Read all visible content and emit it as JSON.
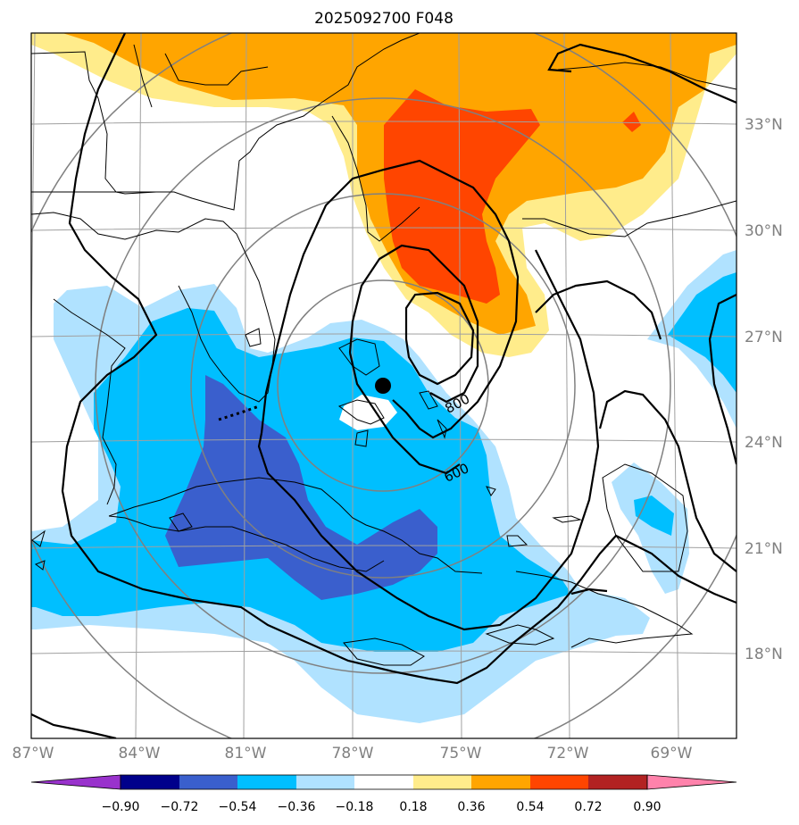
{
  "title": "2025092700 F048",
  "lat_labels": [
    "33°N",
    "30°N",
    "27°N",
    "24°N",
    "21°N",
    "18°N"
  ],
  "lon_labels": [
    "87°W",
    "84°W",
    "81°W",
    "78°W",
    "75°W",
    "72°W",
    "69°W"
  ],
  "contour_labels": [
    "800",
    "600"
  ],
  "colorbar": {
    "labels": [
      "−0.90",
      "−0.72",
      "−0.54",
      "−0.36",
      "−0.18",
      "0.18",
      "0.36",
      "0.54",
      "0.72",
      "0.90"
    ],
    "colors": [
      "#9932cc",
      "#00008b",
      "#3a5fcd",
      "#00bfff",
      "#b0e2ff",
      "#ffffff",
      "#ffec8b",
      "#ffa500",
      "#ff4500",
      "#b22222",
      "#ff82ab"
    ]
  },
  "colors": {
    "c_neg72": "#3a5fcd",
    "c_neg54": "#00bfff",
    "c_neg36": "#b0e2ff",
    "c_pos18": "#ffec8b",
    "c_pos36": "#ffa500",
    "c_pos54": "#ff4500",
    "grid": "#a0a0a0",
    "range_ring": "#808080"
  },
  "storm_center": {
    "lat": 25.5,
    "lon": -77.1
  }
}
